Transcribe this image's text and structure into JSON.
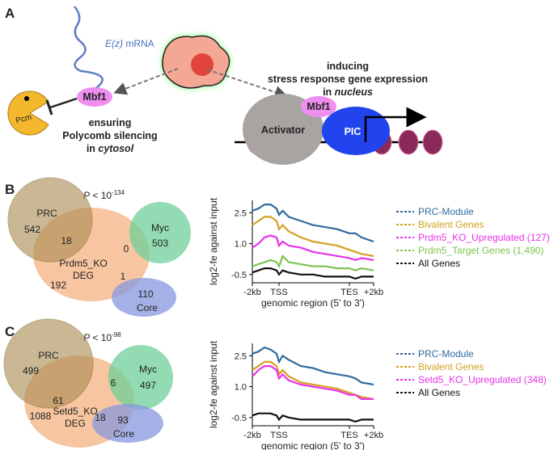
{
  "panel_labels": [
    "A",
    "B",
    "C"
  ],
  "panel_a": {
    "mrna_gene": "E(z)",
    "mrna_suffix": " mRNA",
    "mbf1_left": "Mbf1",
    "pcm": "Pcm",
    "left_caption": {
      "line1": "ensuring",
      "line2": "Polycomb silencing",
      "line3_prefix": "in ",
      "line3_italic": "cytosol"
    },
    "right_caption": {
      "line1": "inducing",
      "line2": "stress response gene expression",
      "line3_prefix": "in ",
      "line3_italic": "nucleus"
    },
    "activator": "Activator",
    "mbf1_right": "Mbf1",
    "pic": "PIC"
  },
  "panel_b": {
    "p_symbol": "P",
    "p_text": " < 10",
    "p_exp": "-134",
    "venn": {
      "prc": "PRC",
      "prc_only": "542",
      "prc_deg": "18",
      "myc": "Myc",
      "myc_only": "503",
      "deg_line1": "Prdm5_KO",
      "deg_line2": "DEG",
      "deg_only": "192",
      "deg_myc": "0",
      "deg_core": "1",
      "core_only": "110",
      "core": "Core"
    }
  },
  "panel_c": {
    "p_symbol": "P",
    "p_text": " < 10",
    "p_exp": "-98",
    "venn": {
      "prc": "PRC",
      "prc_only": "499",
      "prc_deg": "61",
      "myc": "Myc",
      "myc_only": "497",
      "deg_myc": "6",
      "deg_line1": "Setd5_KO",
      "deg_line2": "DEG",
      "deg_only": "1088",
      "deg_core": "18",
      "core_only": "93",
      "core": "Core"
    }
  },
  "chart_data": [
    {
      "type": "line",
      "ylabel": "log2-fe against input",
      "xlabel": "genomic region (5' to 3')",
      "x": [
        0,
        5,
        10,
        15,
        20,
        22,
        25,
        30,
        40,
        50,
        60,
        70,
        80,
        85,
        90,
        100
      ],
      "xlim": [
        0,
        100
      ],
      "xticks": [
        {
          "value": 0,
          "label": "-2kb"
        },
        {
          "value": 22,
          "label": "TSS"
        },
        {
          "value": 80,
          "label": "TES"
        },
        {
          "value": 100,
          "label": "+2kb"
        }
      ],
      "ylim": [
        -0.9,
        3.1
      ],
      "yticks": [
        2.5,
        {
          "value": 1,
          "label": "1.0"
        },
        -0.5
      ],
      "series": [
        {
          "name": "PRC-Module",
          "color": "#2f6aa0",
          "values": [
            2.6,
            2.7,
            2.9,
            2.9,
            2.7,
            2.4,
            2.6,
            2.3,
            2.1,
            1.9,
            1.8,
            1.7,
            1.5,
            1.5,
            1.3,
            1.1
          ]
        },
        {
          "name": "Bivalent Genes",
          "color": "#d4a020",
          "values": [
            1.9,
            2.1,
            2.3,
            2.3,
            2.1,
            1.7,
            1.9,
            1.6,
            1.3,
            1.1,
            1.0,
            0.9,
            0.7,
            0.6,
            0.5,
            0.4
          ]
        },
        {
          "name": "Prdm5_KO_Upregulated (127)",
          "color": "#e832e8",
          "values": [
            0.8,
            1.0,
            1.3,
            1.4,
            1.3,
            0.9,
            1.1,
            0.9,
            0.8,
            0.6,
            0.5,
            0.4,
            0.3,
            0.2,
            0.3,
            0.2
          ]
        },
        {
          "name": "Prdm5_Target Genes (1,490)",
          "color": "#7cc450",
          "values": [
            -0.1,
            0.0,
            0.1,
            0.2,
            0.1,
            -0.1,
            0.4,
            0.1,
            0.0,
            -0.1,
            -0.1,
            -0.2,
            -0.2,
            -0.3,
            -0.2,
            -0.3
          ]
        },
        {
          "name": "All Genes",
          "color": "#111111",
          "values": [
            -0.4,
            -0.3,
            -0.2,
            -0.2,
            -0.3,
            -0.5,
            -0.3,
            -0.4,
            -0.5,
            -0.5,
            -0.6,
            -0.6,
            -0.6,
            -0.7,
            -0.6,
            -0.6
          ]
        }
      ]
    },
    {
      "type": "line",
      "ylabel": "log2-fe against input",
      "xlabel": "genomic region (5' to 3')",
      "x": [
        0,
        5,
        10,
        15,
        20,
        22,
        25,
        30,
        40,
        50,
        60,
        70,
        80,
        85,
        90,
        100
      ],
      "xlim": [
        0,
        100
      ],
      "xticks": [
        {
          "value": 0,
          "label": "-2kb"
        },
        {
          "value": 22,
          "label": "TSS"
        },
        {
          "value": 80,
          "label": "TES"
        },
        {
          "value": 100,
          "label": "+2kb"
        }
      ],
      "ylim": [
        -0.9,
        3.1
      ],
      "yticks": [
        2.5,
        {
          "value": 1,
          "label": "1.0"
        },
        -0.5
      ],
      "series": [
        {
          "name": "PRC-Module",
          "color": "#2f6aa0",
          "values": [
            2.6,
            2.7,
            2.9,
            2.8,
            2.6,
            2.2,
            2.5,
            2.3,
            2.0,
            1.9,
            1.7,
            1.6,
            1.5,
            1.4,
            1.2,
            1.1
          ]
        },
        {
          "name": "Bivalent Genes",
          "color": "#d4a020",
          "values": [
            1.8,
            2.0,
            2.2,
            2.2,
            2.0,
            1.6,
            1.8,
            1.5,
            1.2,
            1.1,
            1.0,
            0.9,
            0.7,
            0.6,
            0.5,
            0.4
          ]
        },
        {
          "name": "Setd5_KO_Upregulated (348)",
          "color": "#e832e8",
          "values": [
            1.5,
            1.8,
            2.0,
            2.0,
            1.8,
            1.4,
            1.6,
            1.3,
            1.1,
            1.0,
            0.9,
            0.8,
            0.6,
            0.6,
            0.4,
            0.4
          ]
        },
        {
          "name": "All Genes",
          "color": "#111111",
          "values": [
            -0.4,
            -0.3,
            -0.3,
            -0.3,
            -0.4,
            -0.6,
            -0.4,
            -0.5,
            -0.6,
            -0.6,
            -0.6,
            -0.6,
            -0.6,
            -0.7,
            -0.6,
            -0.6
          ]
        }
      ]
    }
  ]
}
